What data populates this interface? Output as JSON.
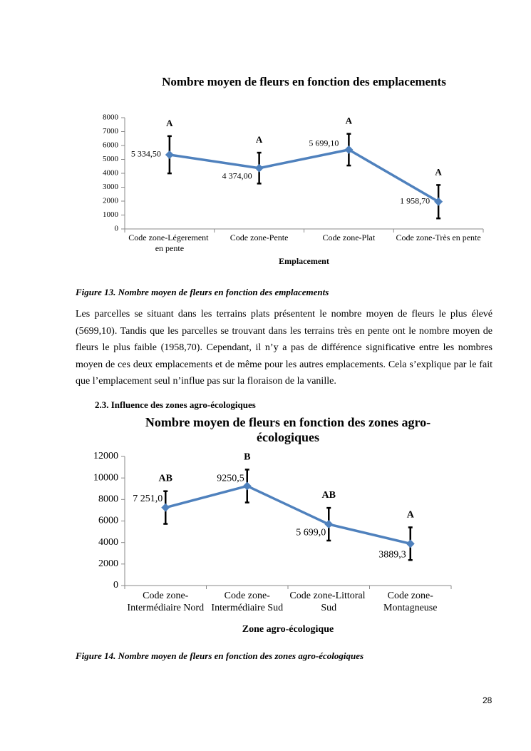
{
  "chart_data": [
    {
      "type": "line",
      "title": "Nombre moyen de fleurs en fonction des emplacements",
      "x_label": "Emplacement",
      "categories": [
        "Code zone-Légerement en pente",
        "Code zone-Pente",
        "Code zone-Plat",
        "Code zone-Très en pente"
      ],
      "values": [
        5334.5,
        4374.0,
        5699.1,
        1958.7
      ],
      "value_labels": [
        "5 334,50",
        "4 374,00",
        "5 699,10",
        "1 958,70"
      ],
      "errors": [
        1340,
        1110,
        1140,
        1200
      ],
      "significance_labels": [
        "A",
        "A",
        "A",
        "A"
      ],
      "color": "#4f81bd",
      "ylim": [
        0,
        8000
      ],
      "yticks": [
        0,
        1000,
        2000,
        3000,
        4000,
        5000,
        6000,
        7000,
        8000
      ]
    },
    {
      "type": "line",
      "title": "Nombre moyen de fleurs en fonction des zones agro-écologiques",
      "x_label": "Zone agro-écologique",
      "categories": [
        "Code zone-Intermédiaire Nord",
        "Code zone-Intermédiaire Sud",
        "Code zone-Littoral Sud",
        "Code zone-Montagneuse"
      ],
      "values": [
        7251.0,
        9250.5,
        5699.0,
        3889.3
      ],
      "value_labels": [
        "7 251,0",
        "9250,5",
        "5 699,0",
        "3889,3"
      ],
      "errors": [
        1520,
        1530,
        1520,
        1520
      ],
      "significance_labels": [
        "AB",
        "B",
        "AB",
        "A"
      ],
      "color": "#4f81bd",
      "ylim": [
        0,
        12000
      ],
      "yticks": [
        0,
        2000,
        4000,
        6000,
        8000,
        10000,
        12000
      ]
    }
  ],
  "document": {
    "figure_captions": [
      "Figure 13. Nombre moyen de fleurs en fonction des emplacements",
      "Figure 14. Nombre moyen  de fleurs en fonction des zones agro-écologiques"
    ],
    "paragraph": "Les parcelles se situant dans les terrains plats présentent le nombre moyen de fleurs le plus élevé (5699,10). Tandis que les parcelles se trouvant dans les terrains très en pente ont le nombre moyen de fleurs le plus faible (1958,70). Cependant, il n’y a pas de différence significative entre les nombres moyen de ces deux emplacements et de même pour les autres emplacements. Cela s’explique par le fait que l’emplacement seul n’influe pas sur la floraison de la vanille.",
    "section_heading": "2.3. Influence des zones agro-écologiques",
    "page_number": "28"
  }
}
